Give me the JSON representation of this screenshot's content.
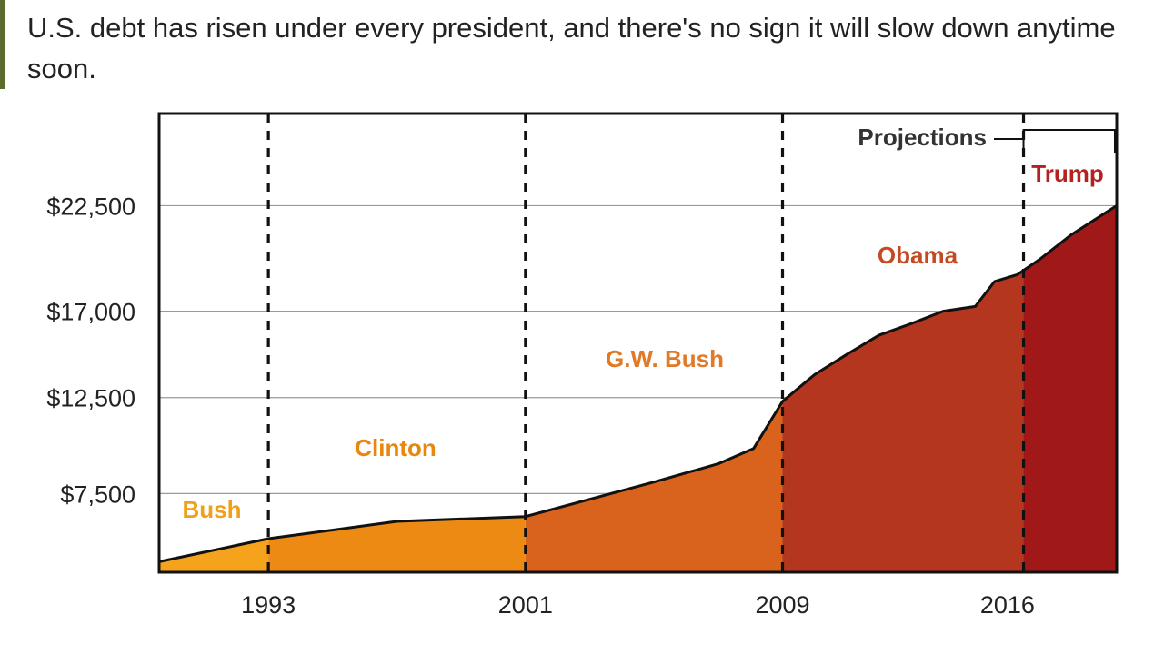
{
  "header": {
    "subtitle": "U.S. debt has risen under every president, and there's no sign it will slow down anytime soon."
  },
  "chart_data": {
    "type": "area",
    "title": "",
    "xlabel": "",
    "ylabel": "",
    "x_ticks": [
      1993,
      2001,
      2009,
      2016
    ],
    "y_ticks": [
      7500,
      12500,
      17000,
      22500
    ],
    "y_tick_labels": [
      "$7,500",
      "$12,500",
      "$17,000",
      "$22,500"
    ],
    "xlim": [
      1989.6,
      2019.4
    ],
    "ylim": [
      3400,
      27300
    ],
    "grid": "horizontal",
    "series": [
      {
        "x": [
          1989.6,
          1993,
          1997,
          2001,
          2005,
          2007,
          2008.1,
          2009,
          2010,
          2011,
          2012,
          2013,
          2014,
          2015,
          2015.6,
          2016.3,
          2017,
          2018,
          2019.4
        ],
        "values": [
          3950,
          5150,
          6050,
          6300,
          8100,
          9050,
          9850,
          12300,
          13700,
          14750,
          15750,
          16350,
          17000,
          17250,
          18550,
          18900,
          19700,
          21000,
          22500
        ]
      }
    ],
    "presidencies": [
      {
        "name": "Bush",
        "start": 1989.6,
        "end": 1993,
        "color": "#f5a21c",
        "label_color": "#f0a01a"
      },
      {
        "name": "Clinton",
        "start": 1993,
        "end": 2001,
        "color": "#ec8a14",
        "label_color": "#e8870f"
      },
      {
        "name": "G.W. Bush",
        "start": 2001,
        "end": 2009,
        "color": "#d9631d",
        "label_color": "#e07a28"
      },
      {
        "name": "Obama",
        "start": 2009,
        "end": 2016.5,
        "color": "#b5361e",
        "label_color": "#c44a22"
      },
      {
        "name": "Trump",
        "start": 2016.5,
        "end": 2019.4,
        "color": "#a01818",
        "label_color": "#b22222"
      }
    ],
    "annotations": [
      {
        "text": "Projections",
        "from": 2016.5,
        "to": 2019.4
      }
    ]
  }
}
